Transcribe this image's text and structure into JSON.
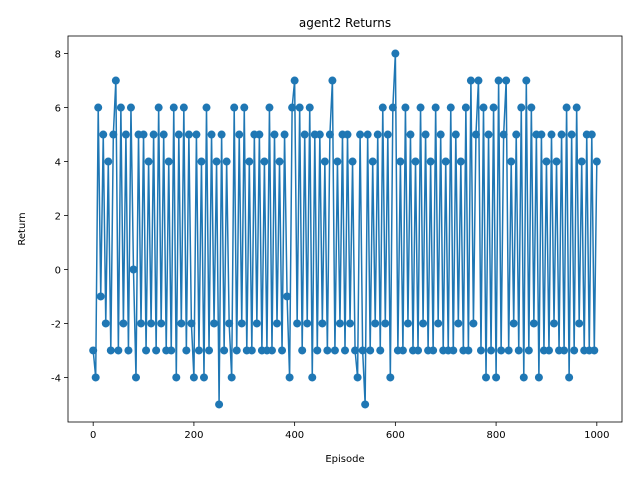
{
  "chart_data": {
    "type": "line",
    "title": "agent2 Returns",
    "x_label": "Episode",
    "y_label": "Return",
    "x": [
      0,
      5,
      10,
      15,
      20,
      25,
      30,
      35,
      40,
      45,
      50,
      55,
      60,
      65,
      70,
      75,
      80,
      85,
      90,
      95,
      100,
      105,
      110,
      115,
      120,
      125,
      130,
      135,
      140,
      145,
      150,
      155,
      160,
      165,
      170,
      175,
      180,
      185,
      190,
      195,
      200,
      205,
      210,
      215,
      220,
      225,
      230,
      235,
      240,
      245,
      250,
      255,
      260,
      265,
      270,
      275,
      280,
      285,
      290,
      295,
      300,
      305,
      310,
      315,
      320,
      325,
      330,
      335,
      340,
      345,
      350,
      355,
      360,
      365,
      370,
      375,
      380,
      385,
      390,
      395,
      400,
      405,
      410,
      415,
      420,
      425,
      430,
      435,
      440,
      445,
      450,
      455,
      460,
      465,
      470,
      475,
      480,
      485,
      490,
      495,
      500,
      505,
      510,
      515,
      520,
      525,
      530,
      535,
      540,
      545,
      550,
      555,
      560,
      565,
      570,
      575,
      580,
      585,
      590,
      595,
      600,
      605,
      610,
      615,
      620,
      625,
      630,
      635,
      640,
      645,
      650,
      655,
      660,
      665,
      670,
      675,
      680,
      685,
      690,
      695,
      700,
      705,
      710,
      715,
      720,
      725,
      730,
      735,
      740,
      745,
      750,
      755,
      760,
      765,
      770,
      775,
      780,
      785,
      790,
      795,
      800,
      805,
      810,
      815,
      820,
      825,
      830,
      835,
      840,
      845,
      850,
      855,
      860,
      865,
      870,
      875,
      880,
      885,
      890,
      895,
      900,
      905,
      910,
      915,
      920,
      925,
      930,
      935,
      940,
      945,
      950,
      955,
      960,
      965,
      970,
      975,
      980,
      985,
      990,
      995,
      1000
    ],
    "series": [
      {
        "name": "agent2",
        "color": "#1f77b4",
        "values": [
          -3,
          -4,
          6,
          -1,
          5,
          -2,
          4,
          -3,
          5,
          7,
          -3,
          6,
          -2,
          5,
          -3,
          6,
          0,
          -4,
          5,
          -2,
          5,
          -3,
          4,
          -2,
          5,
          -3,
          6,
          -2,
          5,
          -3,
          4,
          -3,
          6,
          -4,
          5,
          -2,
          6,
          -3,
          5,
          -2,
          -4,
          5,
          -3,
          4,
          -4,
          6,
          -3,
          5,
          -2,
          4,
          -5,
          5,
          -3,
          4,
          -2,
          -4,
          6,
          -3,
          5,
          -2,
          6,
          -3,
          4,
          -3,
          5,
          -2,
          5,
          -3,
          4,
          -3,
          6,
          -3,
          5,
          -2,
          4,
          -3,
          5,
          -1,
          -4,
          6,
          7,
          -2,
          6,
          -3,
          5,
          -2,
          6,
          -4,
          5,
          -3,
          5,
          -2,
          4,
          -3,
          5,
          7,
          -3,
          4,
          -2,
          5,
          -3,
          5,
          -2,
          4,
          -3,
          -4,
          5,
          -3,
          -5,
          5,
          -3,
          4,
          -2,
          5,
          -3,
          6,
          -2,
          5,
          -4,
          6,
          8,
          -3,
          4,
          -3,
          6,
          -2,
          5,
          -3,
          4,
          -3,
          6,
          -2,
          5,
          -3,
          4,
          -3,
          6,
          -2,
          5,
          -3,
          4,
          -3,
          6,
          -3,
          5,
          -2,
          4,
          -3,
          6,
          -3,
          7,
          -2,
          5,
          7,
          -3,
          6,
          -4,
          5,
          -3,
          6,
          -4,
          7,
          -3,
          5,
          7,
          -3,
          4,
          -2,
          5,
          -3,
          6,
          -4,
          7,
          -3,
          6,
          -2,
          5,
          -4,
          5,
          -3,
          4,
          -3,
          5,
          -2,
          4,
          -3,
          5,
          -3,
          6,
          -4,
          5,
          -3,
          6,
          -2,
          4,
          -3,
          5,
          -3,
          5,
          -3,
          4
        ]
      }
    ],
    "xlim": [
      -50,
      1050
    ],
    "ylim": [
      -5.65,
      8.65
    ],
    "xticks": [
      0,
      200,
      400,
      600,
      800,
      1000
    ],
    "yticks": [
      -4,
      -2,
      0,
      2,
      4,
      6,
      8
    ]
  }
}
